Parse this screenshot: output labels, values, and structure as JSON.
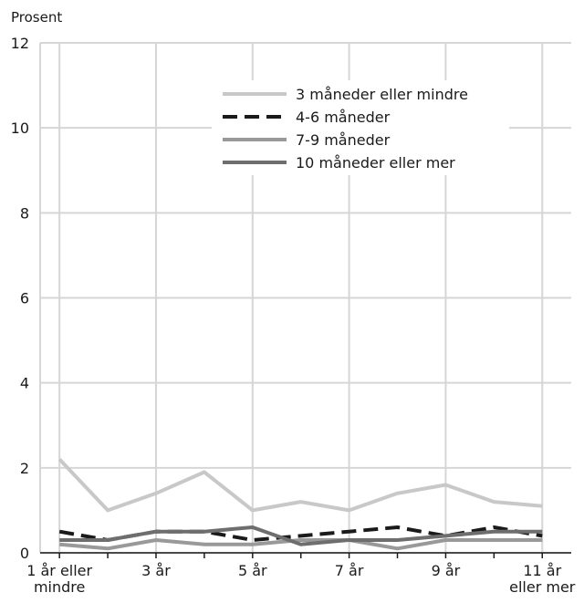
{
  "chart_data": {
    "type": "line",
    "title": "",
    "xlabel": "",
    "ylabel": "Prosent",
    "ylim": [
      0,
      12
    ],
    "yticks": [
      "0",
      "2",
      "4",
      "6",
      "8",
      "10",
      "12"
    ],
    "x": [
      1,
      2,
      3,
      4,
      5,
      6,
      7,
      8,
      9,
      10,
      11
    ],
    "xtick_labels": [
      {
        "x": 1,
        "lines": [
          "1 år eller",
          "mindre"
        ]
      },
      {
        "x": 3,
        "lines": [
          "3 år"
        ]
      },
      {
        "x": 5,
        "lines": [
          "5 år"
        ]
      },
      {
        "x": 7,
        "lines": [
          "7 år"
        ]
      },
      {
        "x": 9,
        "lines": [
          "9 år"
        ]
      },
      {
        "x": 11,
        "lines": [
          "11 år",
          "eller mer"
        ]
      }
    ],
    "grid": true,
    "legend_position": "top-right",
    "series": [
      {
        "name": "3 måneder eller mindre",
        "color": "#c8c8c8",
        "dash": "solid",
        "values": [
          2.2,
          1.0,
          1.4,
          1.9,
          1.0,
          1.2,
          1.0,
          1.4,
          1.6,
          1.2,
          1.1
        ]
      },
      {
        "name": "4-6 måneder",
        "color": "#1a1a1a",
        "dash": "dashed",
        "values": [
          0.5,
          0.3,
          0.5,
          0.5,
          0.3,
          0.4,
          0.5,
          0.6,
          0.4,
          0.6,
          0.4
        ]
      },
      {
        "name": "7-9 måneder",
        "color": "#999999",
        "dash": "solid",
        "values": [
          0.2,
          0.1,
          0.3,
          0.2,
          0.2,
          0.3,
          0.3,
          0.1,
          0.3,
          0.3,
          0.3
        ]
      },
      {
        "name": "10 måneder eller mer",
        "color": "#6e6e6e",
        "dash": "solid",
        "values": [
          0.3,
          0.3,
          0.5,
          0.5,
          0.6,
          0.2,
          0.3,
          0.3,
          0.4,
          0.5,
          0.5
        ]
      }
    ]
  }
}
